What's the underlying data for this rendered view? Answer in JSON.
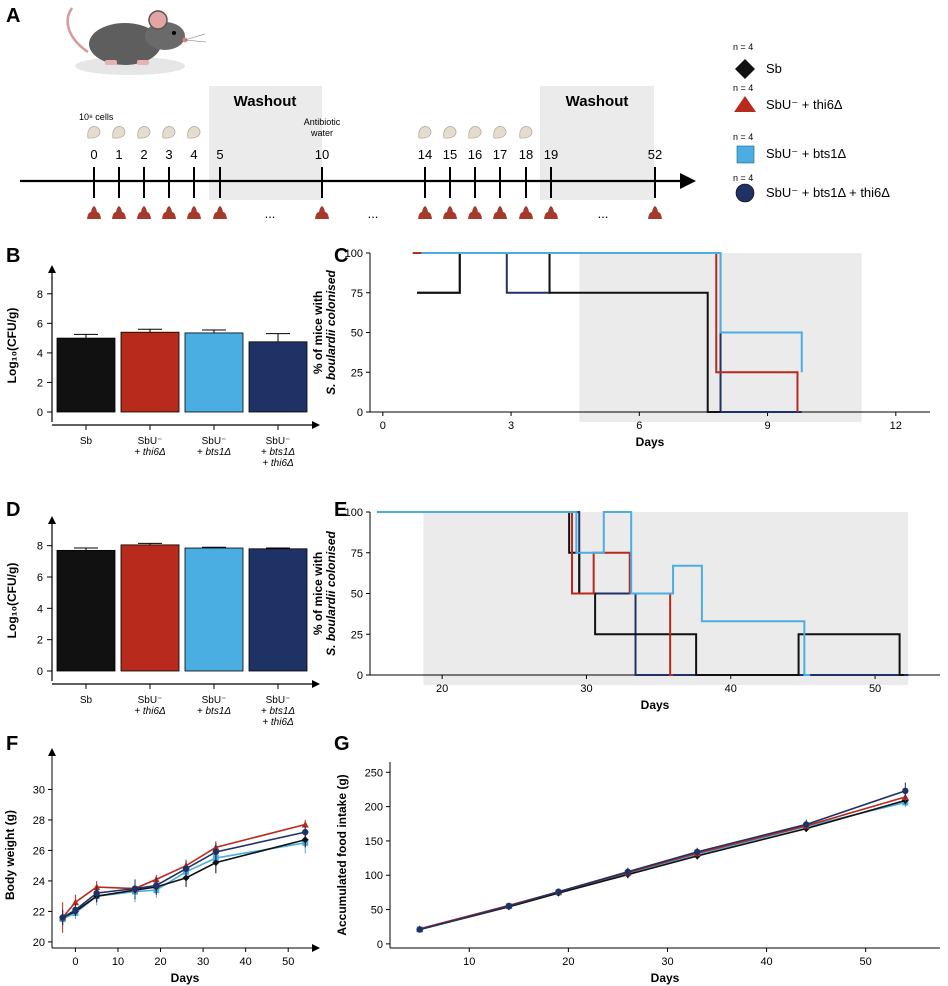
{
  "panel_labels": {
    "a": "A",
    "b": "B",
    "c": "C",
    "d": "D",
    "e": "E",
    "f": "F",
    "g": "G"
  },
  "colors": {
    "sb": "#111111",
    "thi6": "#b82a1c",
    "bts1": "#4aaee3",
    "both": "#1f3265",
    "shade": "#ebebeb",
    "poop": "#a53a2b",
    "cap": "#e4dccf"
  },
  "timeline": {
    "washout_label": "Washout",
    "cells_label": "10⁸ cells",
    "antibiotic_label_1": "Antibiotic",
    "antibiotic_label_2": "water",
    "days": [
      "0",
      "1",
      "2",
      "3",
      "4",
      "5",
      "10",
      "14",
      "15",
      "16",
      "17",
      "18",
      "19",
      "52"
    ],
    "ellipsis": "..."
  },
  "legend": {
    "n_label": "n = 4",
    "items": [
      {
        "label": "Sb",
        "marker": "diamond",
        "color": "#111111"
      },
      {
        "label": "SbU⁻ + thi6Δ",
        "marker": "triangle",
        "color": "#b82a1c"
      },
      {
        "label": "SbU⁻ + bts1Δ",
        "marker": "square",
        "color": "#4aaee3"
      },
      {
        "label": "SbU⁻ + bts1Δ + thi6Δ",
        "marker": "circle",
        "color": "#1f3265"
      }
    ]
  },
  "chart_data": [
    {
      "id": "B",
      "type": "bar",
      "ylabel": "Log₁₀(CFU/g)",
      "yticks": [
        0,
        2,
        4,
        6,
        8
      ],
      "ylim": [
        0,
        9
      ],
      "categories": [
        [
          "Sb"
        ],
        [
          "SbU⁻",
          "+ thi6Δ"
        ],
        [
          "SbU⁻",
          "+ bts1Δ"
        ],
        [
          "SbU⁻",
          "+ bts1Δ",
          "+ thi6Δ"
        ]
      ],
      "values": [
        5.0,
        5.4,
        5.35,
        4.75
      ],
      "errors": [
        0.25,
        0.2,
        0.2,
        0.55
      ]
    },
    {
      "id": "D",
      "type": "bar",
      "ylabel": "Log₁₀(CFU/g)",
      "yticks": [
        0,
        2,
        4,
        6,
        8
      ],
      "ylim": [
        0,
        9
      ],
      "categories": [
        [
          "Sb"
        ],
        [
          "SbU⁻",
          "+ thi6Δ"
        ],
        [
          "SbU⁻",
          "+ bts1Δ"
        ],
        [
          "SbU⁻",
          "+ bts1Δ",
          "+ thi6Δ"
        ]
      ],
      "values": [
        7.7,
        8.05,
        7.85,
        7.8
      ],
      "errors": [
        0.15,
        0.1,
        0.05,
        0.05
      ]
    },
    {
      "id": "C",
      "type": "line",
      "step": true,
      "xlabel": "Days",
      "ylabel_1": "% of mice with",
      "ylabel_2": "S. boulardii colonised",
      "xlim": [
        -0.3,
        12.8
      ],
      "xticks": [
        0,
        3,
        6,
        9,
        12
      ],
      "yticks": [
        0,
        25,
        50,
        75,
        100
      ],
      "ylim": [
        0,
        100
      ],
      "shade": [
        4.6,
        11.2
      ],
      "series": [
        {
          "name": "Sb",
          "x": [
            0.8,
            1.8,
            3.9,
            7.6,
            7.9
          ],
          "y": [
            75,
            100,
            75,
            0,
            0
          ]
        },
        {
          "name": "thi6",
          "x": [
            0.7,
            7.8,
            9.7,
            9.7
          ],
          "y": [
            100,
            25,
            25,
            0
          ]
        },
        {
          "name": "bts1",
          "x": [
            0.9,
            7.9,
            9.8,
            9.8
          ],
          "y": [
            100,
            50,
            50,
            25
          ]
        },
        {
          "name": "both",
          "x": [
            0.8,
            1.8,
            2.9,
            3.9,
            7.9,
            9.8
          ],
          "y": [
            75,
            100,
            75,
            100,
            0,
            0
          ]
        }
      ]
    },
    {
      "id": "E",
      "type": "line",
      "step": true,
      "xlabel": "Days",
      "ylabel_1": "% of mice with",
      "ylabel_2": "S. boulardii colonised",
      "xlim": [
        15,
        54.5
      ],
      "xticks": [
        20,
        30,
        40,
        50
      ],
      "yticks": [
        0,
        25,
        50,
        75,
        100
      ],
      "ylim": [
        0,
        100
      ],
      "shade": [
        18.7,
        52.3
      ],
      "series": [
        {
          "name": "Sb",
          "x": [
            15.5,
            28.8,
            29.5,
            30.6,
            37.6,
            44.7,
            51.7,
            52.0
          ],
          "y": [
            100,
            75,
            50,
            25,
            0,
            25,
            0,
            0
          ]
        },
        {
          "name": "thi6",
          "x": [
            15.5,
            29.0,
            30.5,
            33.0,
            35.8,
            36.0
          ],
          "y": [
            100,
            50,
            75,
            50,
            0,
            0
          ]
        },
        {
          "name": "bts1",
          "x": [
            15.5,
            29.3,
            31.2,
            33.1,
            36.0,
            38.0,
            45.1,
            45.5
          ],
          "y": [
            100,
            75,
            100,
            50,
            67,
            33,
            0,
            0
          ]
        },
        {
          "name": "both",
          "x": [
            15.5,
            29.5,
            33.4,
            52.3
          ],
          "y": [
            100,
            50,
            0,
            0
          ]
        }
      ]
    },
    {
      "id": "F",
      "type": "line",
      "xlabel": "Days",
      "ylabel": "Body weight (g)",
      "xlim": [
        -5.5,
        57
      ],
      "xticks": [
        0,
        10,
        20,
        30,
        40,
        50
      ],
      "yticks": [
        20,
        22,
        24,
        26,
        28,
        30
      ],
      "ylim": [
        19.6,
        31.8
      ],
      "series": [
        {
          "name": "Sb",
          "x": [
            -3,
            0,
            5,
            14,
            19,
            26,
            33,
            54
          ],
          "y": [
            21.6,
            22.0,
            23.0,
            23.4,
            23.6,
            24.2,
            25.2,
            26.7
          ],
          "err": [
            0.5,
            0.3,
            0.4,
            0.6,
            0.5,
            0.6,
            0.7,
            0.5
          ]
        },
        {
          "name": "thi6",
          "x": [
            -3,
            0,
            5,
            14,
            19,
            26,
            33,
            54
          ],
          "y": [
            21.6,
            22.6,
            23.6,
            23.5,
            24.1,
            25.0,
            26.2,
            27.7
          ],
          "err": [
            1.0,
            0.5,
            0.4,
            0.5,
            0.3,
            0.4,
            0.4,
            0.3
          ]
        },
        {
          "name": "bts1",
          "x": [
            -3,
            0,
            5,
            14,
            19,
            26,
            33,
            54
          ],
          "y": [
            21.5,
            21.9,
            23.0,
            23.3,
            23.4,
            24.6,
            25.5,
            26.5
          ],
          "err": [
            0.4,
            0.4,
            0.6,
            0.7,
            0.5,
            0.6,
            0.5,
            0.7
          ]
        },
        {
          "name": "both",
          "x": [
            -3,
            0,
            5,
            14,
            19,
            26,
            33,
            54
          ],
          "y": [
            21.6,
            22.1,
            23.2,
            23.5,
            23.7,
            24.8,
            25.9,
            27.2
          ],
          "err": [
            0.5,
            0.4,
            0.5,
            0.6,
            0.5,
            0.5,
            0.6,
            0.4
          ]
        }
      ]
    },
    {
      "id": "G",
      "type": "line",
      "xlabel": "Days",
      "ylabel": "Accumulated food intake (g)",
      "xlim": [
        2,
        57.5
      ],
      "xticks": [
        10,
        20,
        30,
        40,
        50
      ],
      "yticks": [
        0,
        50,
        100,
        150,
        200,
        250
      ],
      "ylim": [
        -6,
        265
      ],
      "series": [
        {
          "name": "Sb",
          "x": [
            5,
            14,
            19,
            26,
            33,
            44,
            54
          ],
          "y": [
            21,
            54,
            74,
            101,
            128,
            168,
            209
          ],
          "err": [
            2,
            3,
            4,
            5,
            5,
            5,
            6
          ]
        },
        {
          "name": "thi6",
          "x": [
            5,
            14,
            19,
            26,
            33,
            44,
            54
          ],
          "y": [
            22,
            56,
            76,
            104,
            132,
            172,
            214
          ],
          "err": [
            2,
            3,
            4,
            5,
            5,
            5,
            6
          ]
        },
        {
          "name": "bts1",
          "x": [
            5,
            14,
            19,
            26,
            33,
            44,
            54
          ],
          "y": [
            21,
            55,
            75,
            103,
            130,
            171,
            206
          ],
          "err": [
            2,
            3,
            4,
            8,
            6,
            8,
            7
          ]
        },
        {
          "name": "both",
          "x": [
            5,
            14,
            19,
            26,
            33,
            44,
            54
          ],
          "y": [
            21,
            55,
            76,
            105,
            134,
            174,
            223
          ],
          "err": [
            2,
            3,
            4,
            6,
            6,
            7,
            12
          ]
        }
      ]
    }
  ]
}
